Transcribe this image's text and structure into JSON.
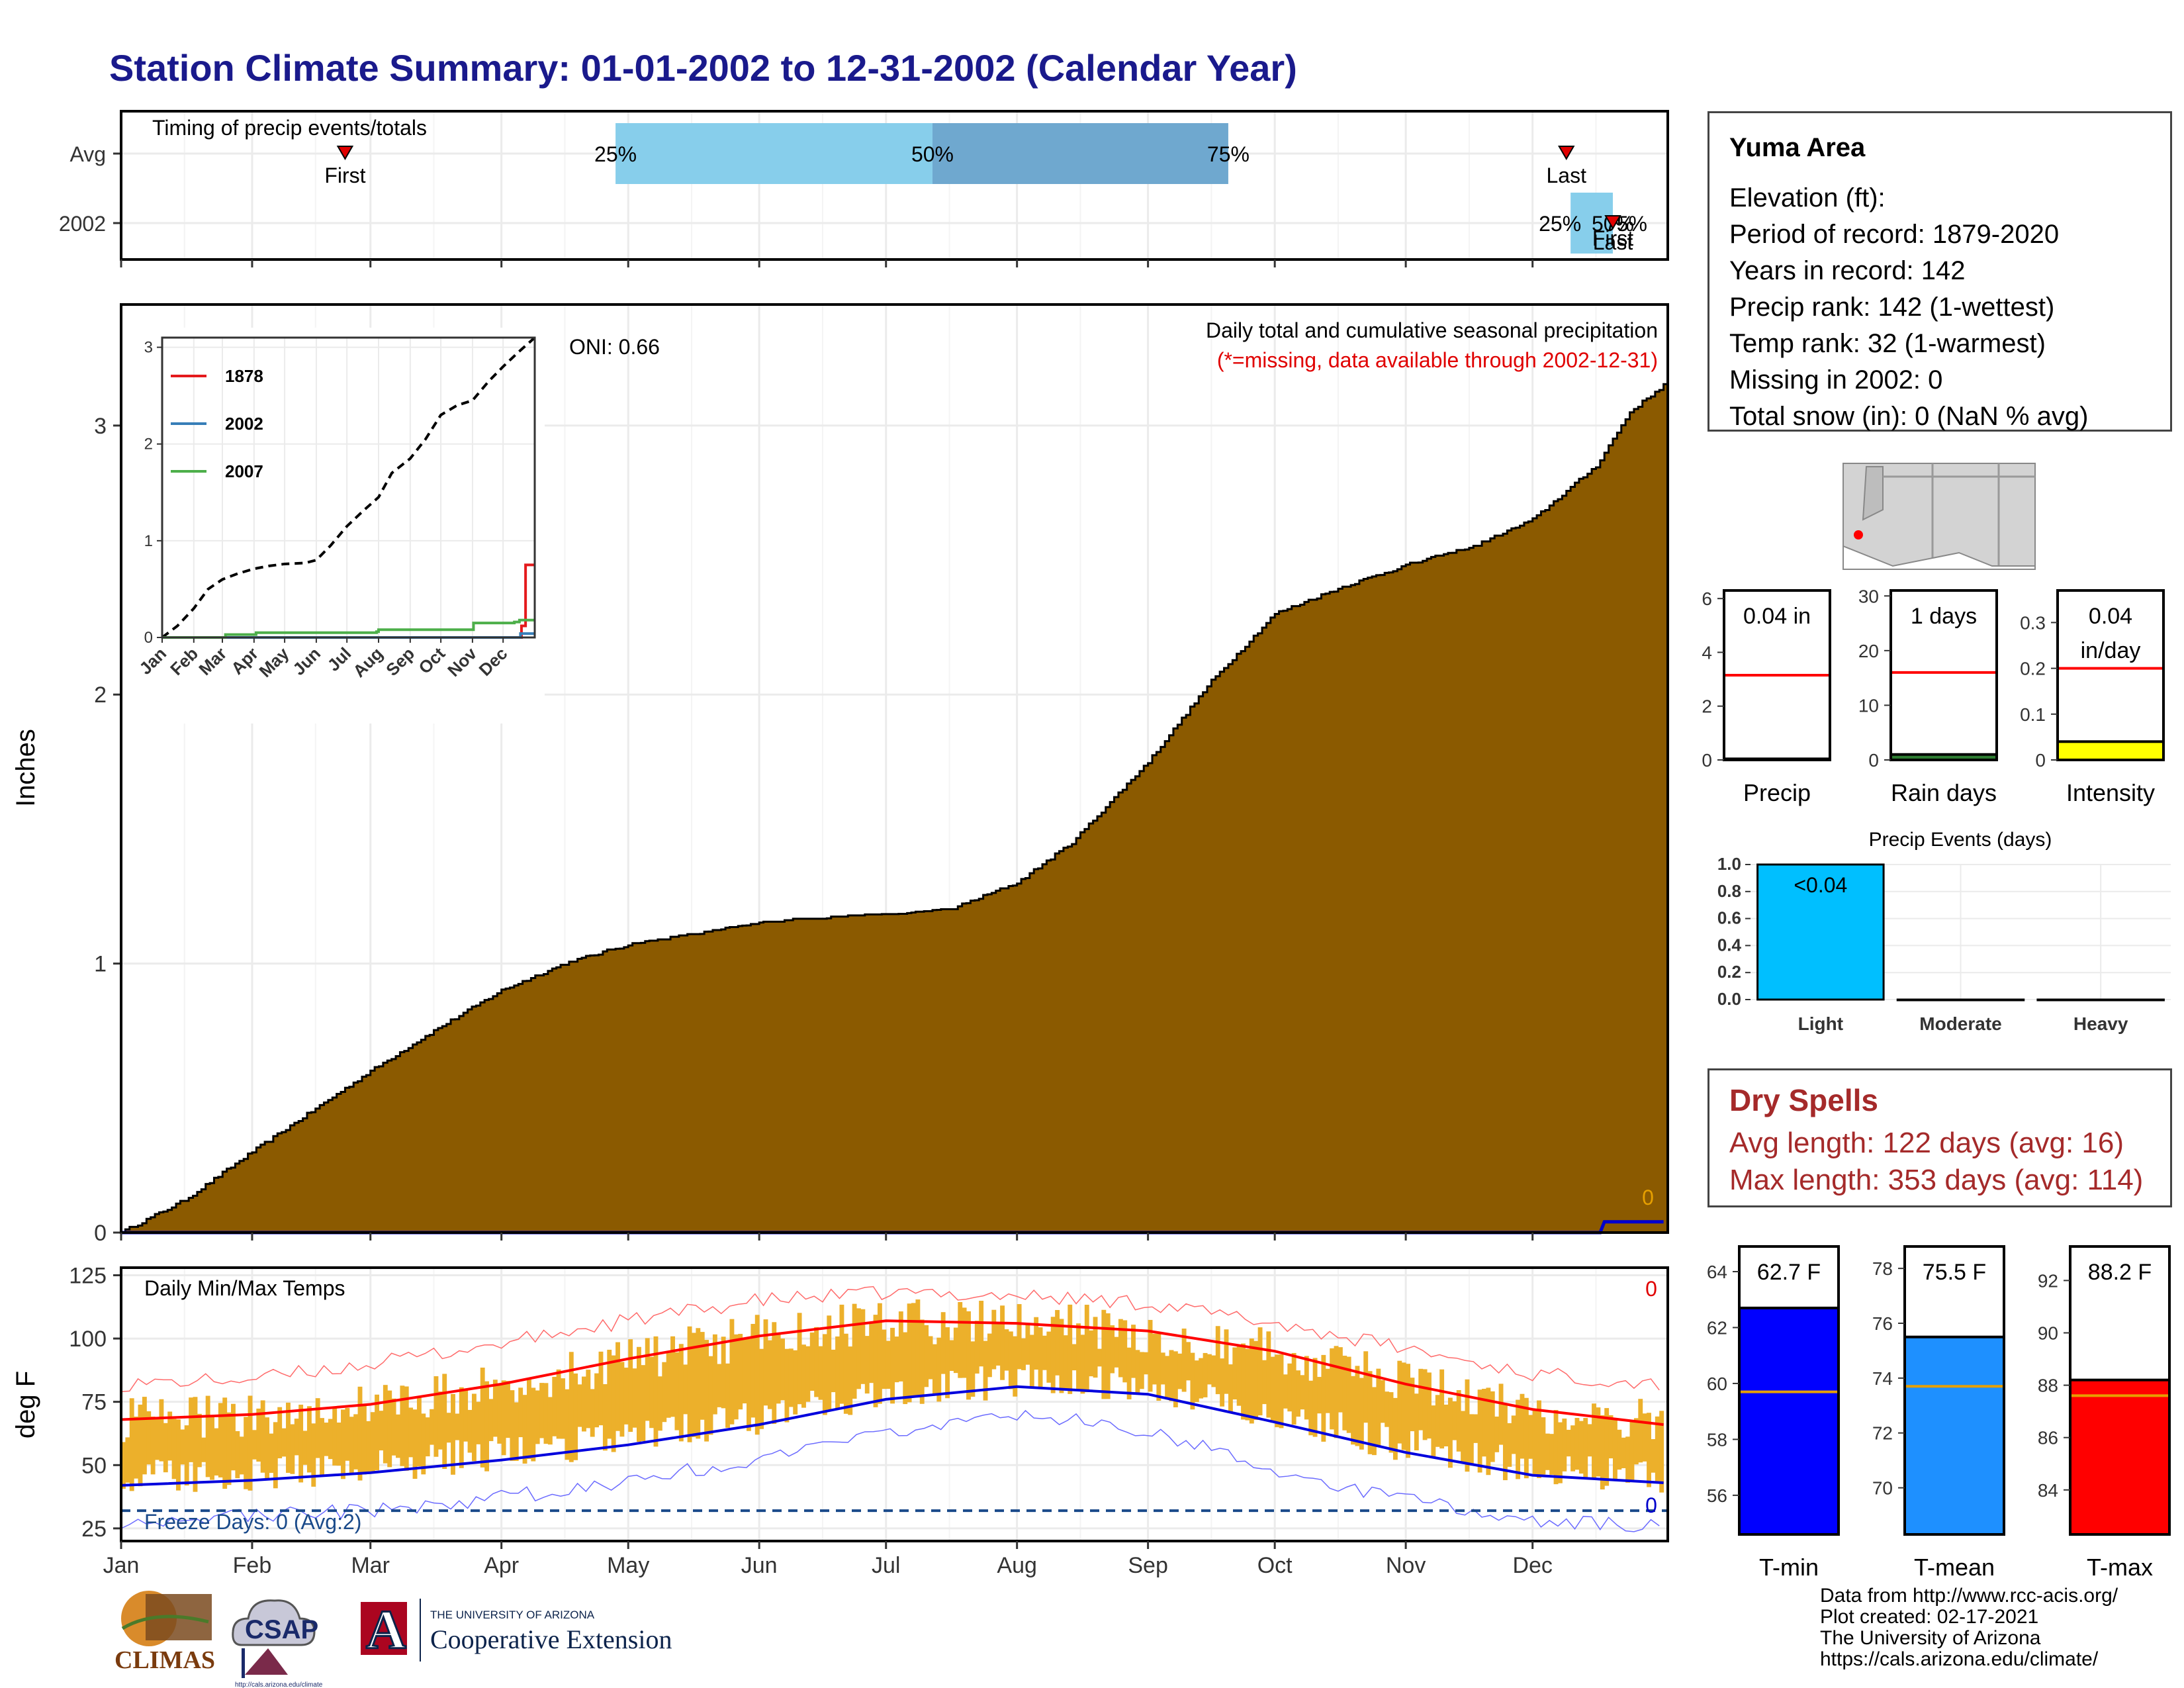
{
  "title": "Station Climate Summary: 01-01-2002 to 12-31-2002 (Calendar Year)",
  "station": {
    "name": "Yuma Area",
    "lines": [
      "Elevation (ft):",
      "Period of record: 1879-2020",
      "Years in record: 142",
      "Precip rank: 142 (1-wettest)",
      "Temp rank: 32 (1-warmest)",
      "Missing in 2002: 0",
      "Total snow (in): 0 (NaN % avg)"
    ]
  },
  "dry_spells": {
    "title": "Dry Spells",
    "avg_line": "Avg length: 122 days (avg: 16)",
    "max_line": "Max length: 353 days (avg: 114)"
  },
  "footer": {
    "lines": [
      "Data from http://www.rcc-acis.org/",
      "Plot created: 02-17-2021",
      "The University of Arizona",
      "https://cals.arizona.edu/climate/"
    ]
  },
  "logos": {
    "climas": "CLIMAS",
    "csap": "CSAP",
    "csap_url": "http://cals.arizona.edu/climate",
    "ua_small": "THE UNIVERSITY OF ARIZONA",
    "ua_big": "Cooperative Extension",
    "ua_letter": "A"
  },
  "colors": {
    "title": "#1a1a8c",
    "precip_fill": "#8b5a00",
    "temp_bar": "#ecb02b",
    "tmax_avg": "#ff0000",
    "tmin_avg": "#0000dd",
    "light_blue": "#87ceeb",
    "mid_blue": "#6fa8cf",
    "cyan": "#00bfff",
    "tmin_bar": "#0000ff",
    "tmean_bar": "#1e90ff",
    "tmax_bar": "#ff0000",
    "intensity_bar": "#ffff00",
    "median_line": "#e69f00",
    "dry_text": "#a52a2a"
  },
  "chart_data": [
    {
      "id": "timing",
      "type": "bar",
      "subtitle": "Timing of precip events/totals",
      "rows": [
        "Avg",
        "2002"
      ],
      "avg": {
        "first": "Feb 23",
        "last": "Dec 9",
        "p25": "Apr 28",
        "p50": "Jul 12",
        "p75": "Sep 20"
      },
      "year": {
        "p25": "Dec 10",
        "p50": "Dec 20",
        "p75": "Dec 20",
        "first": "Dec 20",
        "last": "Dec 20"
      },
      "labels": {
        "first": "First",
        "last": "Last",
        "p25": "25%",
        "p50": "50%",
        "p75": "75%"
      },
      "x_ticks": [
        "Jan",
        "Feb",
        "Mar",
        "Apr",
        "May",
        "Jun",
        "Jul",
        "Aug",
        "Sep",
        "Oct",
        "Nov",
        "Dec"
      ]
    },
    {
      "id": "cumulative_precip",
      "type": "area",
      "title": "Daily total and cumulative seasonal precipitation",
      "note": "(*=missing, data available through 2002-12-31)",
      "oni": "ONI: 0.66",
      "ylabel": "Inches",
      "ylim": [
        0,
        3.45
      ],
      "y_ticks": [
        0,
        1,
        2,
        3
      ],
      "avg_cumulative": [
        [
          0,
          0
        ],
        [
          15,
          0.12
        ],
        [
          31,
          0.3
        ],
        [
          45,
          0.45
        ],
        [
          59,
          0.6
        ],
        [
          74,
          0.75
        ],
        [
          90,
          0.9
        ],
        [
          105,
          1.0
        ],
        [
          120,
          1.07
        ],
        [
          140,
          1.12
        ],
        [
          151,
          1.15
        ],
        [
          165,
          1.17
        ],
        [
          181,
          1.18
        ],
        [
          196,
          1.2
        ],
        [
          212,
          1.3
        ],
        [
          225,
          1.45
        ],
        [
          243,
          1.75
        ],
        [
          258,
          2.05
        ],
        [
          273,
          2.3
        ],
        [
          289,
          2.4
        ],
        [
          304,
          2.48
        ],
        [
          320,
          2.55
        ],
        [
          334,
          2.65
        ],
        [
          349,
          2.85
        ],
        [
          357,
          3.05
        ],
        [
          365,
          3.15
        ]
      ],
      "year_cumulative": [
        [
          0,
          0
        ],
        [
          350,
          0
        ],
        [
          351,
          0.04
        ],
        [
          365,
          0.04
        ]
      ],
      "year_total_label": "0",
      "x_ticks": [
        "Jan",
        "Feb",
        "Mar",
        "Apr",
        "May",
        "Jun",
        "Jul",
        "Aug",
        "Sep",
        "Oct",
        "Nov",
        "Dec"
      ]
    },
    {
      "id": "inset_years",
      "type": "line",
      "ylim": [
        0,
        3.1
      ],
      "y_ticks": [
        0,
        1,
        2,
        3
      ],
      "x_ticks": [
        "Jan",
        "Feb",
        "Mar",
        "Apr",
        "May",
        "Jun",
        "Jul",
        "Aug",
        "Sep",
        "Oct",
        "Nov",
        "Dec"
      ],
      "series": [
        {
          "name": "1878",
          "color": "#e41a1c",
          "values": [
            [
              0,
              0
            ],
            [
              350,
              0
            ],
            [
              352,
              0.12
            ],
            [
              356,
              0.75
            ],
            [
              365,
              0.75
            ]
          ]
        },
        {
          "name": "2002",
          "color": "#377eb8",
          "values": [
            [
              0,
              0
            ],
            [
              350,
              0
            ],
            [
              351,
              0.04
            ],
            [
              365,
              0.04
            ]
          ]
        },
        {
          "name": "2007",
          "color": "#4daf4a",
          "values": [
            [
              0,
              0
            ],
            [
              60,
              0
            ],
            [
              62,
              0.03
            ],
            [
              90,
              0.03
            ],
            [
              92,
              0.05
            ],
            [
              210,
              0.06
            ],
            [
              212,
              0.08
            ],
            [
              300,
              0.08
            ],
            [
              305,
              0.15
            ],
            [
              345,
              0.16
            ],
            [
              350,
              0.18
            ],
            [
              365,
              0.18
            ]
          ]
        }
      ],
      "average": [
        [
          0,
          0
        ],
        [
          15,
          0.12
        ],
        [
          31,
          0.3
        ],
        [
          45,
          0.5
        ],
        [
          59,
          0.6
        ],
        [
          74,
          0.66
        ],
        [
          90,
          0.71
        ],
        [
          105,
          0.74
        ],
        [
          120,
          0.76
        ],
        [
          140,
          0.77
        ],
        [
          151,
          0.8
        ],
        [
          165,
          0.95
        ],
        [
          181,
          1.15
        ],
        [
          196,
          1.3
        ],
        [
          212,
          1.45
        ],
        [
          225,
          1.7
        ],
        [
          243,
          1.85
        ],
        [
          258,
          2.05
        ],
        [
          273,
          2.3
        ],
        [
          289,
          2.4
        ],
        [
          304,
          2.45
        ],
        [
          320,
          2.65
        ],
        [
          334,
          2.8
        ],
        [
          349,
          2.95
        ],
        [
          365,
          3.1
        ]
      ]
    },
    {
      "id": "daily_temps",
      "type": "bar",
      "subtitle": "Daily Min/Max Temps",
      "ylabel": "deg F",
      "ylim": [
        20,
        128
      ],
      "y_ticks": [
        25,
        50,
        75,
        100,
        125
      ],
      "freeze_label": "Freeze Days: 0 (Avg:2)",
      "freeze_line": 32,
      "missing_label": "0",
      "freeze_count_label": "0",
      "avg_max": [
        [
          0,
          68
        ],
        [
          31,
          70
        ],
        [
          59,
          74
        ],
        [
          90,
          82
        ],
        [
          120,
          92
        ],
        [
          151,
          101
        ],
        [
          181,
          107
        ],
        [
          212,
          106
        ],
        [
          243,
          103
        ],
        [
          273,
          95
        ],
        [
          304,
          82
        ],
        [
          334,
          72
        ],
        [
          365,
          66
        ]
      ],
      "avg_min": [
        [
          0,
          42
        ],
        [
          31,
          44
        ],
        [
          59,
          47
        ],
        [
          90,
          52
        ],
        [
          120,
          58
        ],
        [
          151,
          66
        ],
        [
          181,
          76
        ],
        [
          212,
          81
        ],
        [
          243,
          78
        ],
        [
          273,
          67
        ],
        [
          304,
          55
        ],
        [
          334,
          46
        ],
        [
          365,
          43
        ]
      ],
      "rec_max": [
        [
          0,
          82
        ],
        [
          31,
          84
        ],
        [
          59,
          90
        ],
        [
          90,
          98
        ],
        [
          120,
          107
        ],
        [
          151,
          115
        ],
        [
          181,
          118
        ],
        [
          212,
          117
        ],
        [
          243,
          114
        ],
        [
          273,
          106
        ],
        [
          304,
          96
        ],
        [
          334,
          86
        ],
        [
          365,
          82
        ]
      ],
      "rec_min": [
        [
          0,
          28
        ],
        [
          31,
          30
        ],
        [
          59,
          32
        ],
        [
          90,
          37
        ],
        [
          120,
          44
        ],
        [
          151,
          52
        ],
        [
          181,
          62
        ],
        [
          212,
          70
        ],
        [
          243,
          64
        ],
        [
          273,
          48
        ],
        [
          304,
          36
        ],
        [
          334,
          28
        ],
        [
          365,
          26
        ]
      ],
      "x_ticks": [
        "Jan",
        "Feb",
        "Mar",
        "Apr",
        "May",
        "Jun",
        "Jul",
        "Aug",
        "Sep",
        "Oct",
        "Nov",
        "Dec"
      ]
    },
    {
      "id": "precip_gauges",
      "type": "bar",
      "panels": [
        {
          "xlabel": "Precip",
          "value_label": "0.04 in",
          "value": 0.04,
          "avg": 3.15,
          "ylim": [
            0,
            6.3
          ],
          "y_ticks": [
            0,
            2,
            4,
            6
          ]
        },
        {
          "xlabel": "Rain days",
          "value_label": "1 days",
          "value": 1,
          "avg": 16,
          "ylim": [
            0,
            31
          ],
          "y_ticks": [
            0,
            10,
            20,
            30
          ]
        },
        {
          "xlabel": "Intensity",
          "value_label": "0.04",
          "value_label2": "in/day",
          "value": 0.04,
          "avg": 0.2,
          "ylim": [
            0,
            0.37
          ],
          "y_ticks": [
            0.0,
            0.1,
            0.2,
            0.3
          ]
        }
      ]
    },
    {
      "id": "precip_events",
      "type": "bar",
      "title": "Precip Events (days)",
      "categories": [
        "Light",
        "Moderate",
        "Heavy"
      ],
      "values": [
        1.0,
        0.0,
        0.0
      ],
      "bar_label": "<0.04",
      "ylim": [
        0,
        1.0
      ],
      "y_ticks": [
        0.0,
        0.2,
        0.4,
        0.6,
        0.8,
        1.0
      ]
    },
    {
      "id": "temp_gauges",
      "type": "bar",
      "panels": [
        {
          "xlabel": "T-min",
          "value_label": "62.7 F",
          "value": 62.7,
          "avg": 59.7,
          "ylim": [
            54.6,
            64.9
          ],
          "y_ticks": [
            56,
            58,
            60,
            62,
            64
          ]
        },
        {
          "xlabel": "T-mean",
          "value_label": "75.5 F",
          "value": 75.5,
          "avg": 73.7,
          "ylim": [
            68.3,
            78.8
          ],
          "y_ticks": [
            70,
            72,
            74,
            76,
            78
          ]
        },
        {
          "xlabel": "T-max",
          "value_label": "88.2 F",
          "value": 88.2,
          "avg": 87.6,
          "ylim": [
            82.3,
            93.3
          ],
          "y_ticks": [
            84,
            86,
            88,
            90,
            92
          ]
        }
      ]
    }
  ]
}
